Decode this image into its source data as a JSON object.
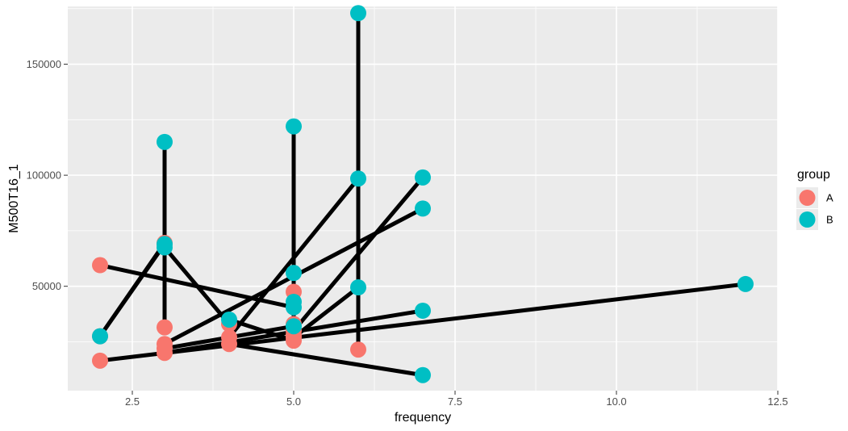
{
  "chart_data": {
    "type": "scatter",
    "title": "",
    "xlabel": "frequency",
    "ylabel": "M500T16_1",
    "xlim": [
      1.5,
      12.5
    ],
    "ylim": [
      3000,
      176000
    ],
    "x_ticks": [
      2.5,
      5.0,
      7.5,
      10.0,
      12.5
    ],
    "x_tick_labels": [
      "2.5",
      "5.0",
      "7.5",
      "10.0",
      "12.5"
    ],
    "y_ticks": [
      50000,
      100000,
      150000
    ],
    "y_tick_labels": [
      "50000",
      "100000",
      "150000"
    ],
    "grid": true,
    "legend": {
      "title": "group",
      "position": "right",
      "entries": [
        {
          "name": "A",
          "color": "#F8766D"
        },
        {
          "name": "B",
          "color": "#00BFC4"
        }
      ]
    },
    "colors": {
      "A": "#F8766D",
      "B": "#00BFC4",
      "segment": "#000000",
      "panel": "#EBEBEB",
      "grid": "#FFFFFF"
    },
    "pairs": [
      {
        "A": [
          2,
          59500
        ],
        "B": [
          5,
          40500
        ]
      },
      {
        "A": [
          2,
          27500
        ],
        "B": [
          3,
          69000
        ]
      },
      {
        "A": [
          2,
          16500
        ],
        "B": [
          12,
          51000
        ]
      },
      {
        "A": [
          3,
          69500
        ],
        "B": [
          2,
          27500
        ]
      },
      {
        "A": [
          3,
          31500
        ],
        "B": [
          3,
          115000
        ]
      },
      {
        "A": [
          3,
          24000
        ],
        "B": [
          7,
          85000
        ]
      },
      {
        "A": [
          3,
          20000
        ],
        "B": [
          7,
          39000
        ]
      },
      {
        "A": [
          4,
          33000
        ],
        "B": [
          3,
          67500
        ]
      },
      {
        "A": [
          4,
          27000
        ],
        "B": [
          6,
          98500
        ]
      },
      {
        "A": [
          4,
          24000
        ],
        "B": [
          7,
          10000
        ]
      },
      {
        "A": [
          5,
          47500
        ],
        "B": [
          5,
          122000
        ]
      },
      {
        "A": [
          5,
          28000
        ],
        "B": [
          5,
          56000
        ]
      },
      {
        "A": [
          5,
          25500
        ],
        "B": [
          4,
          35000
        ]
      },
      {
        "A": [
          5,
          30000
        ],
        "B": [
          7,
          99000
        ]
      },
      {
        "A": [
          6,
          21500
        ],
        "B": [
          6,
          173000
        ]
      },
      {
        "A": [
          5,
          27000
        ],
        "B": [
          6,
          49500
        ]
      },
      {
        "A": [
          5,
          33000
        ],
        "B": [
          5,
          43000
        ]
      },
      {
        "A": [
          3,
          22000
        ],
        "B": [
          5,
          32000
        ]
      }
    ]
  }
}
